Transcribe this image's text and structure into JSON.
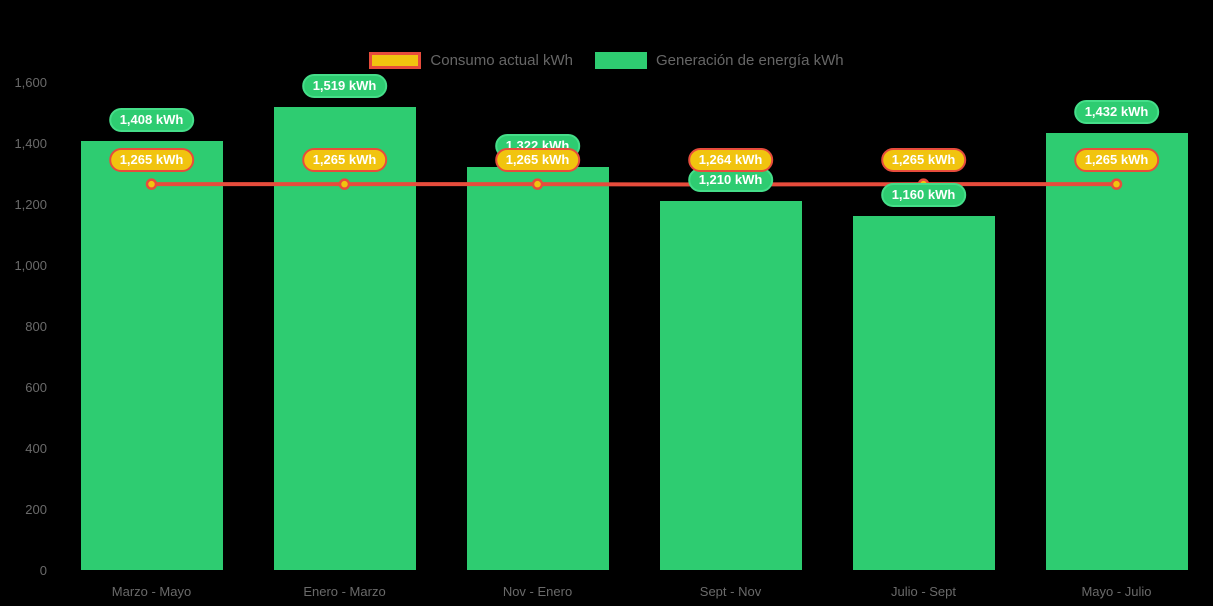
{
  "background": "#000000",
  "axis_color": "#6a6a6a",
  "legend_text_color": "#666666",
  "label_text_color": "#ffffff",
  "chart_data": {
    "type": "bar",
    "title": "",
    "categories": [
      "Marzo - Mayo",
      "Enero - Marzo",
      "Nov - Enero",
      "Sept - Nov",
      "Julio - Sept",
      "Mayo - Julio"
    ],
    "series": [
      {
        "name": "Consumo actual kWh",
        "type": "line",
        "color": "#e74c3c",
        "point_fill": "#f1c40f",
        "point_border": "#e74c3c",
        "values": [
          1265,
          1265,
          1265,
          1264,
          1265,
          1265
        ],
        "labels": [
          "1,265 kWh",
          "1,265 kWh",
          "1,265 kWh",
          "1,264 kWh",
          "1,265 kWh",
          "1,265 kWh"
        ],
        "label_bg": "#f1c40f",
        "label_border": "#e74c3c",
        "legend_swatch": {
          "fill": "#f1c40f",
          "border": "#e74c3c"
        }
      },
      {
        "name": "Generación de energía kWh",
        "type": "bar",
        "color": "#2ecc71",
        "values": [
          1408,
          1519,
          1322,
          1210,
          1160,
          1432
        ],
        "labels": [
          "1,408 kWh",
          "1,519 kWh",
          "1,322 kWh",
          "1,210 kWh",
          "1,160 kWh",
          "1,432 kWh"
        ],
        "label_bg": "#2ecc71",
        "label_border": "#45de89",
        "legend_swatch": {
          "fill": "#2ecc71",
          "border": "#2ecc71"
        }
      }
    ],
    "ylim": [
      0,
      1600
    ],
    "y_ticks": [
      0,
      200,
      400,
      600,
      800,
      1000,
      1200,
      1400,
      1600
    ],
    "y_tick_labels": [
      "0",
      "200",
      "400",
      "600",
      "800",
      "1,000",
      "1,200",
      "1,400",
      "1,600"
    ],
    "grid": false,
    "legend_position": "top"
  }
}
